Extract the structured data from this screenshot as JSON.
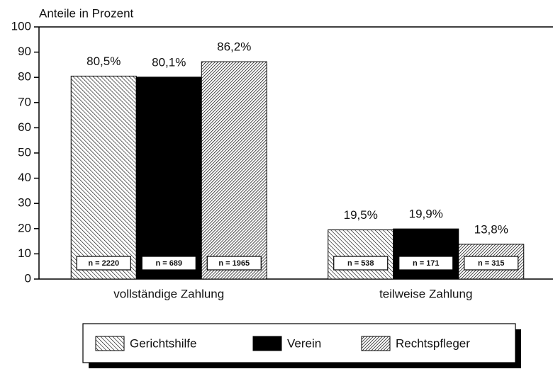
{
  "chart_data": {
    "type": "bar",
    "y_label": "Anteile in Prozent",
    "categories": [
      "vollständige Zahlung",
      "teilweise Zahlung"
    ],
    "series": [
      {
        "name": "Gerichtshilfe",
        "color": "#000000",
        "pattern": "backslash",
        "values": [
          80.5,
          19.5
        ],
        "value_labels": [
          "80,5%",
          "19,5%"
        ],
        "n_labels": [
          "n = 2220",
          "n = 538"
        ]
      },
      {
        "name": "Verein",
        "color": "#000000",
        "pattern": "solid",
        "values": [
          80.1,
          19.9
        ],
        "value_labels": [
          "80,1%",
          "19,9%"
        ],
        "n_labels": [
          "n = 689",
          "n = 171"
        ]
      },
      {
        "name": "Rechtspfleger",
        "color": "#000000",
        "pattern": "slash",
        "values": [
          86.2,
          13.8
        ],
        "value_labels": [
          "86,2%",
          "13,8%"
        ],
        "n_labels": [
          "n = 1965",
          "n = 315"
        ]
      }
    ],
    "ylim": [
      0,
      100
    ],
    "yticks": [
      0,
      10,
      20,
      30,
      40,
      50,
      60,
      70,
      80,
      90,
      100
    ],
    "legend": "bottom"
  }
}
